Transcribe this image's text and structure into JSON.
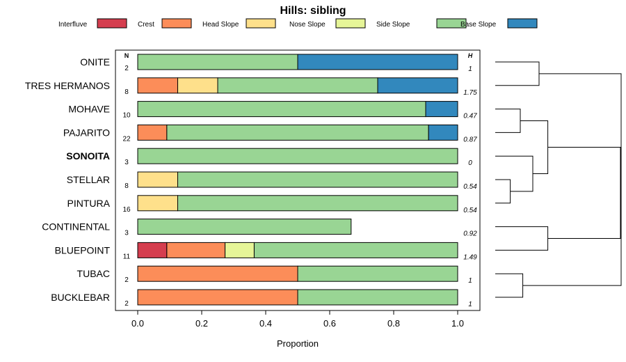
{
  "chart_data": {
    "type": "bar",
    "orientation": "horizontal",
    "stacked": true,
    "title": "Hills: sibling",
    "xlabel": "Proportion",
    "ylabel": "",
    "xlim": [
      0,
      1
    ],
    "xticks": [
      "0.0",
      "0.2",
      "0.4",
      "0.6",
      "0.8",
      "1.0"
    ],
    "xtick_values": [
      0,
      0.2,
      0.4,
      0.6,
      0.8,
      1.0
    ],
    "n_header": "N",
    "h_header": "H",
    "legend": [
      {
        "label": "Interfluve",
        "color": "#D53E4F"
      },
      {
        "label": "Crest",
        "color": "#FC8D59"
      },
      {
        "label": "Head Slope",
        "color": "#FEE08B"
      },
      {
        "label": "Nose Slope",
        "color": "#E6F598"
      },
      {
        "label": "Side Slope",
        "color": "#99D594"
      },
      {
        "label": "Base Slope",
        "color": "#3288BD"
      }
    ],
    "categories": [
      "ONITE",
      "TRES HERMANOS",
      "MOHAVE",
      "PAJARITO",
      "SONOITA",
      "STELLAR",
      "PINTURA",
      "CONTINENTAL",
      "BLUEPOINT",
      "TUBAC",
      "BUCKLEBAR"
    ],
    "highlighted": "SONOITA",
    "n": [
      "2",
      "8",
      "10",
      "22",
      "3",
      "8",
      "16",
      "3",
      "11",
      "2",
      "2"
    ],
    "h": [
      "1",
      "1.75",
      "0.47",
      "0.87",
      "0",
      "0.54",
      "0.54",
      "0.92",
      "1.49",
      "1",
      "1"
    ],
    "series": [
      {
        "name": "Interfluve",
        "values": [
          0,
          0,
          0,
          0,
          0,
          0,
          0,
          0,
          0.091,
          0,
          0
        ]
      },
      {
        "name": "Crest",
        "values": [
          0,
          0.125,
          0,
          0.091,
          0,
          0,
          0,
          0,
          0.182,
          0.5,
          0.5
        ]
      },
      {
        "name": "Head Slope",
        "values": [
          0,
          0.125,
          0,
          0,
          0,
          0.125,
          0.125,
          0,
          0,
          0,
          0
        ]
      },
      {
        "name": "Nose Slope",
        "values": [
          0,
          0,
          0,
          0,
          0,
          0,
          0,
          0,
          0.091,
          0,
          0
        ]
      },
      {
        "name": "Side Slope",
        "values": [
          0.5,
          0.5,
          0.9,
          0.818,
          1.0,
          0.875,
          0.875,
          0.667,
          0.636,
          0.5,
          0.5
        ]
      },
      {
        "name": "Base Slope",
        "values": [
          0.5,
          0.25,
          0.1,
          0.091,
          0,
          0,
          0,
          0,
          0,
          0,
          0
        ]
      }
    ],
    "dendrogram_merge_heights": {
      "onite_tres_hermanos": 0.35,
      "mohave_pajarito": 0.2,
      "stellar_pintura": 0.12,
      "sonoita_stellar_pintura": 0.3,
      "mohave_to_pintura": 0.42,
      "continental_bluepoint": 0.42,
      "tubac_bucklebar": 0.22,
      "continental_to_bucklebar": 1.0,
      "root": 1.0
    }
  }
}
